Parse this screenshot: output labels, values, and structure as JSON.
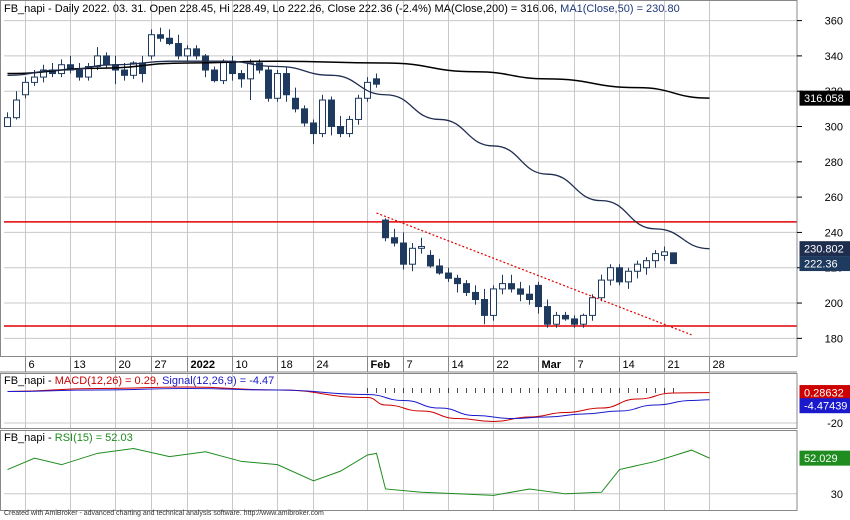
{
  "header": {
    "price_pre": "FB_napi - Daily 2022. 03. 31. Open 228.45, Hi 228.49, Lo 222.26, Close 222.36 (-2.4%) ",
    "price_ma200": "MA(Close,200) = 316.06, ",
    "price_ma50": "MA1(Close,50) = 230.80",
    "macd_pre": "FB_napi - ",
    "macd_main": "MACD(12,26) = 0.29, ",
    "macd_signal": "Signal(12,26,9) = -4.47",
    "rsi_pre": "FB_napi - ",
    "rsi_main": "RSI(15) = 52.03"
  },
  "credit": "Created with AmiBroker - advanced charting and technical analysis software. http://www.amibroker.com",
  "colors": {
    "up_candle": "#ffffff",
    "down_candle": "#1f3a5f",
    "ma200": "#000000",
    "ma50": "#1f2d4f",
    "support_resistance": "#e00000",
    "trendline": "#e00000",
    "macd_line": "#cc0000",
    "signal_line": "#1a1acc",
    "rsi_line": "#1e8c1e",
    "grid": "#c8c8c8"
  },
  "chart_data": [
    {
      "type": "candlestick",
      "title": "FB_napi - Daily 2022. 03. 31.",
      "ylim": [
        170,
        366
      ],
      "yticks": [
        180,
        200,
        220,
        240,
        260,
        280,
        300,
        320,
        340,
        360
      ],
      "x_labels": [
        "6",
        "13",
        "20",
        "27",
        "2022",
        "10",
        "18",
        "24",
        "Feb",
        "7",
        "14",
        "22",
        "Mar",
        "7",
        "14",
        "21",
        "28"
      ],
      "x_label_index": [
        2,
        7,
        12,
        16,
        20,
        25,
        30,
        34,
        40,
        44,
        49,
        54,
        59,
        63,
        68,
        73,
        78
      ],
      "ohlc": [
        [
          300,
          308,
          300,
          305
        ],
        [
          305,
          320,
          304,
          315
        ],
        [
          318,
          328,
          316,
          325
        ],
        [
          325,
          332,
          323,
          328
        ],
        [
          328,
          335,
          325,
          332
        ],
        [
          332,
          336,
          328,
          330
        ],
        [
          330,
          338,
          328,
          335
        ],
        [
          335,
          340,
          330,
          332
        ],
        [
          332,
          336,
          326,
          328
        ],
        [
          328,
          336,
          326,
          334
        ],
        [
          334,
          345,
          332,
          340
        ],
        [
          340,
          342,
          333,
          335
        ],
        [
          335,
          340,
          324,
          332
        ],
        [
          332,
          336,
          326,
          329
        ],
        [
          329,
          337,
          327,
          336
        ],
        [
          336,
          340,
          325,
          330
        ],
        [
          340,
          355,
          338,
          352
        ],
        [
          352,
          356,
          348,
          350
        ],
        [
          350,
          355,
          346,
          347
        ],
        [
          347,
          352,
          338,
          340
        ],
        [
          340,
          346,
          337,
          344
        ],
        [
          344,
          346,
          338,
          340
        ],
        [
          340,
          341,
          328,
          332
        ],
        [
          332,
          334,
          325,
          326
        ],
        [
          326,
          338,
          324,
          337
        ],
        [
          337,
          340,
          326,
          330
        ],
        [
          330,
          332,
          322,
          327
        ],
        [
          327,
          338,
          315,
          336
        ],
        [
          336,
          338,
          330,
          332
        ],
        [
          332,
          334,
          314,
          316
        ],
        [
          316,
          332,
          314,
          330
        ],
        [
          330,
          334,
          314,
          318
        ],
        [
          316,
          322,
          308,
          310
        ],
        [
          310,
          312,
          300,
          302
        ],
        [
          302,
          304,
          290,
          296
        ],
        [
          296,
          318,
          294,
          315
        ],
        [
          315,
          317,
          295,
          300
        ],
        [
          300,
          306,
          294,
          296
        ],
        [
          296,
          306,
          294,
          304
        ],
        [
          304,
          318,
          301,
          316
        ],
        [
          316,
          328,
          314,
          325
        ],
        [
          327,
          330,
          322,
          324
        ],
        [
          247,
          248,
          235,
          237
        ],
        [
          237,
          242,
          232,
          234
        ],
        [
          234,
          240,
          219,
          222
        ],
        [
          222,
          234,
          218,
          231
        ],
        [
          231,
          237,
          228,
          232
        ],
        [
          227,
          230,
          220,
          221
        ],
        [
          221,
          225,
          216,
          217
        ],
        [
          217,
          220,
          212,
          214
        ],
        [
          214,
          216,
          206,
          211
        ],
        [
          211,
          213,
          204,
          206
        ],
        [
          206,
          210,
          199,
          202
        ],
        [
          202,
          208,
          188,
          193
        ],
        [
          193,
          210,
          190,
          208
        ],
        [
          208,
          216,
          205,
          211
        ],
        [
          211,
          216,
          206,
          208
        ],
        [
          208,
          212,
          201,
          205
        ],
        [
          205,
          210,
          199,
          202
        ],
        [
          210,
          212,
          194,
          198
        ],
        [
          198,
          202,
          186,
          188
        ],
        [
          188,
          195,
          186,
          193
        ],
        [
          193,
          195,
          190,
          191
        ],
        [
          191,
          193,
          186,
          188
        ],
        [
          188,
          194,
          186,
          193
        ],
        [
          193,
          205,
          190,
          203
        ],
        [
          203,
          216,
          201,
          213
        ],
        [
          213,
          222,
          210,
          220
        ],
        [
          220,
          222,
          210,
          212
        ],
        [
          212,
          220,
          208,
          218
        ],
        [
          218,
          224,
          214,
          222
        ],
        [
          220,
          226,
          216,
          224
        ],
        [
          224,
          230,
          220,
          228
        ],
        [
          227,
          232,
          224,
          229
        ],
        [
          228.45,
          228.49,
          222.26,
          222.36
        ]
      ],
      "ma200": {
        "name": "MA(Close,200)",
        "x": [
          0,
          10,
          20,
          30,
          42,
          52,
          60,
          70,
          78
        ],
        "y": [
          330,
          333,
          336,
          337,
          336,
          331,
          327,
          322,
          316.06
        ]
      },
      "ma50": {
        "name": "MA1(Close,50)",
        "x": [
          0,
          6,
          12,
          18,
          24,
          30,
          36,
          42,
          48,
          54,
          60,
          66,
          72,
          78
        ],
        "y": [
          329,
          332,
          335,
          337,
          337,
          334,
          329,
          318,
          304,
          289,
          273,
          258,
          242,
          230.8
        ]
      },
      "horizontal_lines": [
        246,
        187
      ],
      "trendline": {
        "x": [
          41,
          76
        ],
        "y": [
          251,
          182
        ]
      },
      "value_labels": [
        {
          "label": "316.058",
          "value": 316.06
        },
        {
          "label": "230.802",
          "value": 230.8
        },
        {
          "label": "222.36",
          "value": 222.36
        }
      ]
    },
    {
      "type": "line",
      "title": "FB_napi - MACD(12,26) = 0.29, Signal(12,26,9) = -4.47",
      "ylim": [
        -22,
        8
      ],
      "yticks": [
        -20
      ],
      "series": [
        {
          "name": "MACD(12,26)",
          "x": [
            0,
            10,
            20,
            30,
            40,
            42,
            46,
            50,
            54,
            58,
            62,
            66,
            70,
            74,
            78
          ],
          "y": [
            1,
            3,
            4,
            2,
            -3,
            -8,
            -12,
            -17,
            -19,
            -16,
            -13,
            -10,
            -4,
            0,
            0.29
          ]
        },
        {
          "name": "Signal(12,26,9)",
          "x": [
            0,
            10,
            20,
            30,
            40,
            44,
            48,
            52,
            56,
            60,
            64,
            68,
            72,
            76,
            78
          ],
          "y": [
            1,
            2,
            3,
            2,
            -1,
            -5,
            -10,
            -15,
            -17,
            -16,
            -14,
            -12,
            -8,
            -5,
            -4.47
          ]
        }
      ],
      "value_labels": [
        {
          "label": "0.28632",
          "value": 0.29
        },
        {
          "label": "-4.47439",
          "value": -4.47
        }
      ]
    },
    {
      "type": "line",
      "title": "FB_napi - RSI(15) = 52.03",
      "ylim": [
        20,
        62
      ],
      "yticks": [
        30
      ],
      "series": [
        {
          "name": "RSI(15)",
          "x": [
            0,
            3,
            6,
            10,
            14,
            18,
            22,
            26,
            30,
            34,
            37,
            40,
            41,
            42,
            46,
            50,
            54,
            58,
            62,
            66,
            68,
            72,
            76,
            78
          ],
          "y": [
            45,
            52,
            48,
            55,
            58,
            53,
            56,
            50,
            48,
            38,
            44,
            54,
            55,
            33,
            31,
            30,
            29,
            33,
            30,
            31,
            45,
            50,
            57,
            52.03
          ]
        }
      ],
      "value_labels": [
        {
          "label": "52.029",
          "value": 52.03
        }
      ]
    }
  ]
}
